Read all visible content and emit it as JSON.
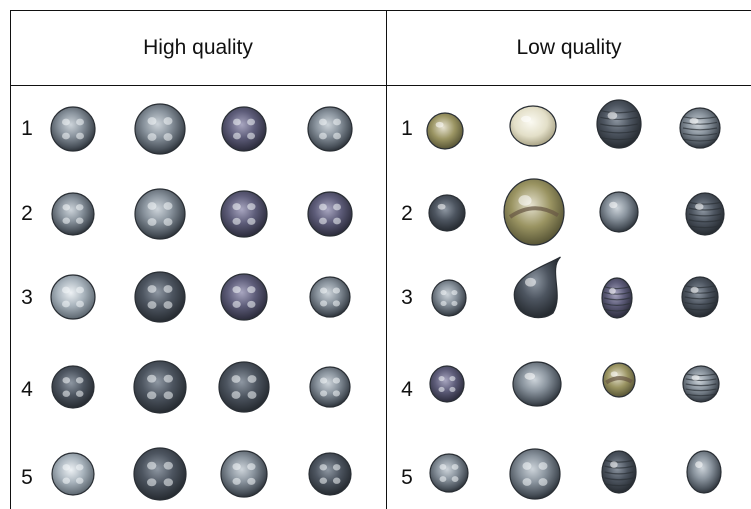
{
  "table": {
    "columns": [
      {
        "title": "High quality",
        "rows": [
          "1",
          "2",
          "3",
          "4",
          "5"
        ]
      },
      {
        "title": "Low quality",
        "rows": [
          "1",
          "2",
          "3",
          "4",
          "5"
        ]
      }
    ]
  },
  "colors": {
    "border": "#111111",
    "pearl_dark": "#3e4650",
    "pearl_mid": "#7a8490",
    "pearl_light": "#c9d1d8",
    "pearl_cream": "#e8e4d2",
    "pearl_olive": "#8a8456",
    "pearl_purple": "#585770"
  }
}
